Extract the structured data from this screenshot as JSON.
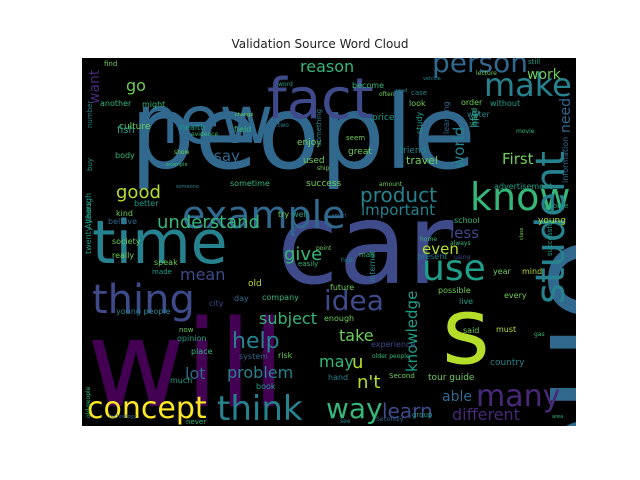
{
  "title": "Validation Source Word Cloud",
  "colors": {
    "background": "#000000",
    "palette": [
      "#440154",
      "#482878",
      "#3e4a89",
      "#31688e",
      "#26828e",
      "#1f9e89",
      "#35b779",
      "#6ece58",
      "#b5de2b",
      "#fde725"
    ]
  },
  "words": [
    {
      "text": "people",
      "color": "#31688e"
    },
    {
      "text": "new",
      "color": "#31688e"
    },
    {
      "text": "fact",
      "color": "#3e4a89"
    },
    {
      "text": "car",
      "color": "#3e4a89"
    },
    {
      "text": "time",
      "color": "#26828e"
    },
    {
      "text": "will",
      "color": "#440154"
    },
    {
      "text": "s",
      "color": "#b5de2b"
    },
    {
      "text": "one",
      "color": "#31688e"
    },
    {
      "text": "make",
      "color": "#26828e"
    },
    {
      "text": "person",
      "color": "#31688e"
    },
    {
      "text": "example",
      "color": "#31688e"
    },
    {
      "text": "know",
      "color": "#35b779"
    },
    {
      "text": "thing",
      "color": "#3e4a89"
    },
    {
      "text": "use",
      "color": "#1f9e89"
    },
    {
      "text": "student",
      "color": "#26828e"
    },
    {
      "text": "concept",
      "color": "#fde725"
    },
    {
      "text": "think",
      "color": "#26828e"
    },
    {
      "text": "way",
      "color": "#35b779"
    },
    {
      "text": "learn",
      "color": "#3e4a89"
    },
    {
      "text": "many",
      "color": "#482878"
    },
    {
      "text": "product",
      "color": "#26828e"
    },
    {
      "text": "idea",
      "color": "#3e4a89"
    },
    {
      "text": "help",
      "color": "#26828e"
    },
    {
      "text": "give",
      "color": "#35b779"
    },
    {
      "text": "good",
      "color": "#b5de2b"
    },
    {
      "text": "reason",
      "color": "#35b779"
    },
    {
      "text": "go",
      "color": "#6ece58"
    },
    {
      "text": "work",
      "color": "#6ece58"
    },
    {
      "text": "understand",
      "color": "#35b779"
    },
    {
      "text": "important",
      "color": "#26828e"
    },
    {
      "text": "say",
      "color": "#31688e"
    },
    {
      "text": "subject",
      "color": "#35b779"
    },
    {
      "text": "take",
      "color": "#6ece58"
    },
    {
      "text": "mean",
      "color": "#3e4a89"
    },
    {
      "text": "lot",
      "color": "#31688e"
    },
    {
      "text": "problem",
      "color": "#26828e"
    },
    {
      "text": "may",
      "color": "#35b779"
    },
    {
      "text": "u",
      "color": "#b5de2b"
    },
    {
      "text": "n't",
      "color": "#b5de2b"
    },
    {
      "text": "knowledge",
      "color": "#1f9e89"
    },
    {
      "text": "able",
      "color": "#31688e"
    },
    {
      "text": "different",
      "color": "#482878"
    },
    {
      "text": "even",
      "color": "#b5de2b"
    },
    {
      "text": "less",
      "color": "#3e4a89"
    },
    {
      "text": "First",
      "color": "#6ece58"
    },
    {
      "text": "world",
      "color": "#26828e"
    },
    {
      "text": "life",
      "color": "#26828e"
    },
    {
      "text": "need",
      "color": "#31688e"
    },
    {
      "text": "want",
      "color": "#482878"
    },
    {
      "text": "culture",
      "color": "#6ece58"
    },
    {
      "text": "fish",
      "color": "#1f9e89"
    },
    {
      "text": "body",
      "color": "#35b779"
    },
    {
      "text": "kind",
      "color": "#6ece58"
    },
    {
      "text": "believe",
      "color": "#31688e"
    },
    {
      "text": "society",
      "color": "#6ece58"
    },
    {
      "text": "really",
      "color": "#6ece58"
    },
    {
      "text": "twenty years",
      "color": "#1f9e89"
    },
    {
      "text": "young people",
      "color": "#26828e"
    },
    {
      "text": "future",
      "color": "#6ece58"
    },
    {
      "text": "old",
      "color": "#b5de2b"
    },
    {
      "text": "city",
      "color": "#3e4a89"
    },
    {
      "text": "day",
      "color": "#31688e"
    },
    {
      "text": "company",
      "color": "#35b779"
    },
    {
      "text": "opinion",
      "color": "#1f9e89"
    },
    {
      "text": "place",
      "color": "#35b779"
    },
    {
      "text": "system",
      "color": "#31688e"
    },
    {
      "text": "risk",
      "color": "#6ece58"
    },
    {
      "text": "much",
      "color": "#1f9e89"
    },
    {
      "text": "book",
      "color": "#1f9e89"
    },
    {
      "text": "enough",
      "color": "#6ece58"
    },
    {
      "text": "hand",
      "color": "#26828e"
    },
    {
      "text": "experience",
      "color": "#3e4a89"
    },
    {
      "text": "tour guide",
      "color": "#6ece58"
    },
    {
      "text": "group",
      "color": "#1f9e89"
    },
    {
      "text": "said",
      "color": "#6ece58"
    },
    {
      "text": "must",
      "color": "#b5de2b"
    },
    {
      "text": "country",
      "color": "#26828e"
    },
    {
      "text": "every",
      "color": "#6ece58"
    },
    {
      "text": "live",
      "color": "#1f9e89"
    },
    {
      "text": "possible",
      "color": "#6ece58"
    },
    {
      "text": "present",
      "color": "#26828e"
    },
    {
      "text": "school",
      "color": "#35b779"
    },
    {
      "text": "young",
      "color": "#b5de2b"
    },
    {
      "text": "successful",
      "color": "#1f9e89"
    },
    {
      "text": "year",
      "color": "#6ece58"
    },
    {
      "text": "mind",
      "color": "#b5de2b"
    },
    {
      "text": "advertisement",
      "color": "#1f9e89"
    },
    {
      "text": "information",
      "color": "#31688e"
    },
    {
      "text": "travel",
      "color": "#6ece58"
    },
    {
      "text": "friend",
      "color": "#26828e"
    },
    {
      "text": "learning",
      "color": "#31688e"
    },
    {
      "text": "great",
      "color": "#6ece58"
    },
    {
      "text": "used",
      "color": "#6ece58"
    },
    {
      "text": "success",
      "color": "#6ece58"
    },
    {
      "text": "sometime",
      "color": "#35b779"
    },
    {
      "text": "enjoy",
      "color": "#6ece58"
    },
    {
      "text": "health",
      "color": "#1f9e89"
    },
    {
      "text": "field",
      "color": "#35b779"
    },
    {
      "text": "another",
      "color": "#35b779"
    },
    {
      "text": "might",
      "color": "#35b779"
    },
    {
      "text": "better",
      "color": "#1f9e89"
    },
    {
      "text": "speak",
      "color": "#6ece58"
    },
    {
      "text": "made",
      "color": "#1f9e89"
    },
    {
      "text": "try",
      "color": "#6ece58"
    },
    {
      "text": "well",
      "color": "#1f9e89"
    },
    {
      "text": "easily",
      "color": "#35b779"
    },
    {
      "text": "internet",
      "color": "#26828e"
    },
    {
      "text": "become",
      "color": "#35b779"
    },
    {
      "text": "price",
      "color": "#1f9e89"
    },
    {
      "text": "water",
      "color": "#26828e"
    },
    {
      "text": "order",
      "color": "#6ece58"
    },
    {
      "text": "without",
      "color": "#1f9e89"
    },
    {
      "text": "hard",
      "color": "#35b779"
    },
    {
      "text": "look",
      "color": "#6ece58"
    },
    {
      "text": "study",
      "color": "#1f9e89"
    },
    {
      "text": "seem",
      "color": "#6ece58"
    },
    {
      "text": "evidence",
      "color": "#35b779"
    },
    {
      "text": "still",
      "color": "#1f9e89"
    },
    {
      "text": "lecture",
      "color": "#6ece58"
    },
    {
      "text": "movie",
      "color": "#35b779"
    },
    {
      "text": "home",
      "color": "#35b779"
    },
    {
      "text": "always",
      "color": "#35b779"
    },
    {
      "text": "come",
      "color": "#1f9e89"
    },
    {
      "text": "man",
      "color": "#35b779"
    },
    {
      "text": "high",
      "color": "#26828e"
    },
    {
      "text": "point",
      "color": "#6ece58"
    },
    {
      "text": "show",
      "color": "#6ece58"
    },
    {
      "text": "someone",
      "color": "#26828e"
    },
    {
      "text": "something",
      "color": "#26828e"
    },
    {
      "text": "find",
      "color": "#6ece58"
    },
    {
      "text": "Although",
      "color": "#1f9e89"
    },
    {
      "text": "buy",
      "color": "#1f9e89"
    },
    {
      "text": "now",
      "color": "#6ece58"
    },
    {
      "text": "case",
      "color": "#26828e"
    },
    {
      "text": "often",
      "color": "#6ece58"
    },
    {
      "text": "vehicle",
      "color": "#26828e"
    },
    {
      "text": "number",
      "color": "#26828e"
    },
    {
      "text": "word",
      "color": "#1f9e89"
    },
    {
      "text": "change",
      "color": "#6ece58"
    },
    {
      "text": "two",
      "color": "#26828e"
    },
    {
      "text": "amount",
      "color": "#6ece58"
    },
    {
      "text": "class",
      "color": "#6ece58"
    },
    {
      "text": "older people",
      "color": "#35b779"
    },
    {
      "text": "Second",
      "color": "#6ece58"
    },
    {
      "text": "gas",
      "color": "#35b779"
    },
    {
      "text": "ship",
      "color": "#6ece58"
    },
    {
      "text": "see",
      "color": "#26828e"
    },
    {
      "text": "never",
      "color": "#35b779"
    },
    {
      "text": "old people",
      "color": "#35b779"
    },
    {
      "text": "area",
      "color": "#35b779"
    },
    {
      "text": "read",
      "color": "#26828e"
    },
    {
      "text": "using",
      "color": "#3e4a89"
    },
    {
      "text": "smart",
      "color": "#31688e"
    },
    {
      "text": "Secondly",
      "color": "#31688e"
    },
    {
      "text": "technology",
      "color": "#31688e"
    },
    {
      "text": "example",
      "color": "#35b779"
    }
  ]
}
